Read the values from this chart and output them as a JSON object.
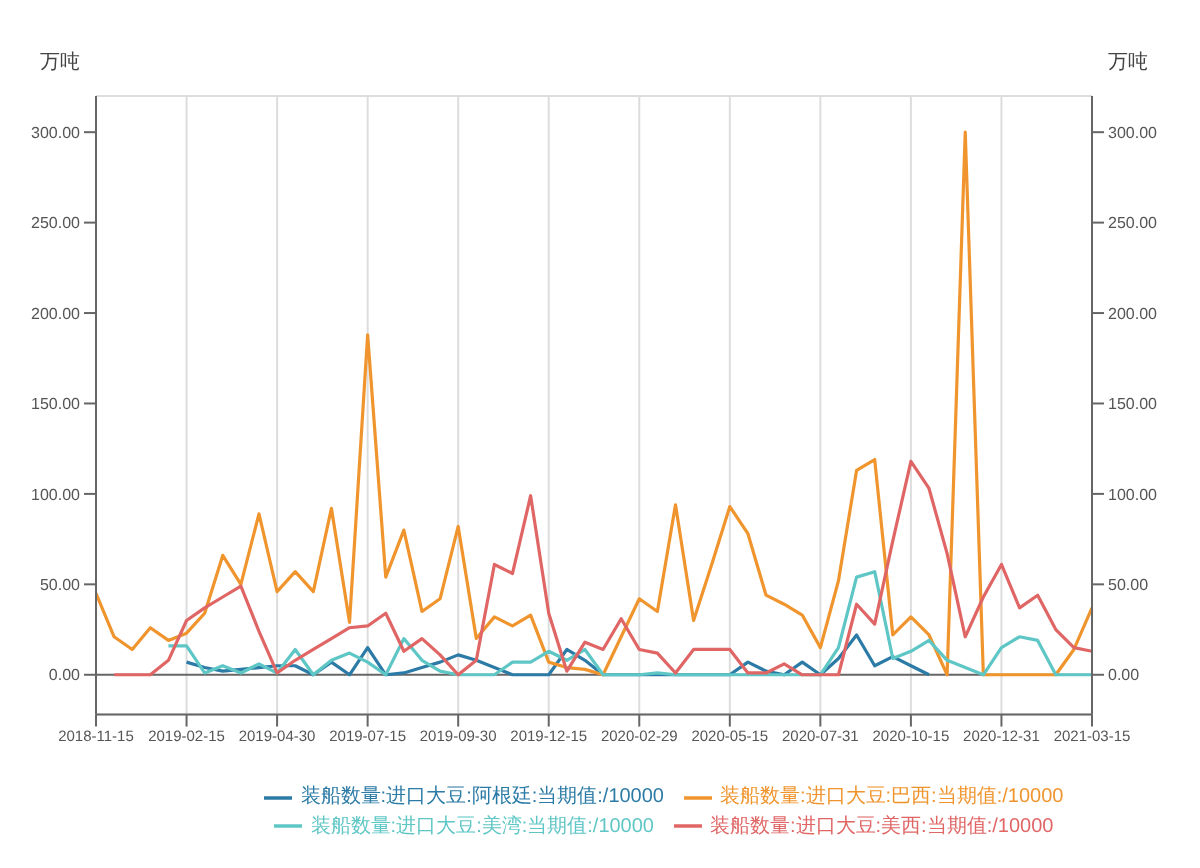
{
  "chart_data": {
    "type": "line",
    "ylabel": "万吨",
    "y2label": "万吨",
    "categories": [
      "2018-11-15",
      null,
      null,
      null,
      null,
      "2019-02-15",
      null,
      null,
      null,
      null,
      "2019-04-30",
      null,
      null,
      null,
      null,
      "2019-07-15",
      null,
      null,
      null,
      null,
      "2019-09-30",
      null,
      null,
      null,
      null,
      "2019-12-15",
      null,
      null,
      null,
      null,
      "2020-02-29",
      null,
      null,
      null,
      null,
      "2020-05-15",
      null,
      null,
      null,
      null,
      "2020-07-31",
      null,
      null,
      null,
      null,
      "2020-10-15",
      null,
      null,
      null,
      null,
      "2020-12-31",
      null,
      null,
      null,
      null,
      "2021-03-15"
    ],
    "series": [
      {
        "name": "装船数量:进口大豆:阿根廷:当期值:/10000",
        "color": "#2c7ba6",
        "values": [
          null,
          null,
          null,
          null,
          null,
          7,
          4,
          2,
          3,
          4,
          5,
          5,
          0,
          7,
          0,
          15,
          0,
          1,
          4,
          7,
          11,
          8,
          4,
          0,
          0,
          0,
          14,
          8,
          0,
          0,
          0,
          0,
          0,
          0,
          0,
          0,
          7,
          2,
          0,
          7,
          0,
          9,
          22,
          5,
          10,
          5,
          0,
          null,
          null,
          null,
          null,
          null,
          null,
          null,
          null,
          null
        ]
      },
      {
        "name": "装船数量:进口大豆:巴西:当期值:/10000",
        "color": "#f0952e",
        "values": [
          45,
          21,
          14,
          26,
          19,
          23,
          34,
          66,
          50,
          89,
          46,
          57,
          46,
          92,
          29,
          188,
          54,
          80,
          35,
          42,
          82,
          20,
          32,
          27,
          33,
          7,
          4,
          3,
          0,
          21,
          42,
          35,
          94,
          30,
          61,
          93,
          78,
          44,
          39,
          33,
          15,
          52,
          113,
          119,
          22,
          32,
          22,
          0,
          300,
          0,
          0,
          0,
          0,
          0,
          14,
          37
        ]
      },
      {
        "name": "装船数量:进口大豆:美湾:当期值:/10000",
        "color": "#5fc6c6",
        "values": [
          null,
          null,
          null,
          null,
          16,
          16,
          1,
          5,
          1,
          6,
          1,
          14,
          0,
          8,
          12,
          7,
          0,
          20,
          8,
          2,
          0,
          0,
          0,
          7,
          7,
          13,
          8,
          14,
          0,
          0,
          0,
          1,
          0,
          0,
          0,
          0,
          0,
          0,
          0,
          0,
          0,
          15,
          54,
          57,
          9,
          13,
          19,
          8,
          4,
          0,
          15,
          21,
          19,
          0,
          0,
          0
        ]
      },
      {
        "name": "装船数量:进口大豆:美西:当期值:/10000",
        "color": "#e06666",
        "values": [
          null,
          0,
          0,
          0,
          8,
          30,
          37,
          43,
          49,
          24,
          1,
          8,
          14,
          20,
          26,
          27,
          34,
          13,
          20,
          11,
          0,
          8,
          61,
          56,
          99,
          34,
          2,
          18,
          14,
          31,
          14,
          12,
          1,
          14,
          14,
          14,
          1,
          1,
          6,
          0,
          0,
          0,
          39,
          28,
          74,
          118,
          103,
          67,
          21,
          43,
          61,
          37,
          44,
          25,
          15,
          13
        ]
      }
    ],
    "ylim": [
      -22,
      320
    ],
    "yticks": [
      {
        "value": 0,
        "label": "0.00"
      },
      {
        "value": 50,
        "label": "50.00"
      },
      {
        "value": 100,
        "label": "100.00"
      },
      {
        "value": 150,
        "label": "150.00"
      },
      {
        "value": 200,
        "label": "200.00"
      },
      {
        "value": 250,
        "label": "250.00"
      },
      {
        "value": 300,
        "label": "300.00"
      }
    ],
    "y2lim": [
      -22,
      320
    ],
    "y2ticks": [
      {
        "value": 0,
        "label": "0.00"
      },
      {
        "value": 50,
        "label": "50.00"
      },
      {
        "value": 100,
        "label": "100.00"
      },
      {
        "value": 150,
        "label": "150.00"
      },
      {
        "value": 200,
        "label": "200.00"
      },
      {
        "value": 250,
        "label": "250.00"
      },
      {
        "value": 300,
        "label": "300.00"
      }
    ],
    "grid": true,
    "legend": "bottom",
    "marker": "none",
    "line_style": "solid"
  }
}
